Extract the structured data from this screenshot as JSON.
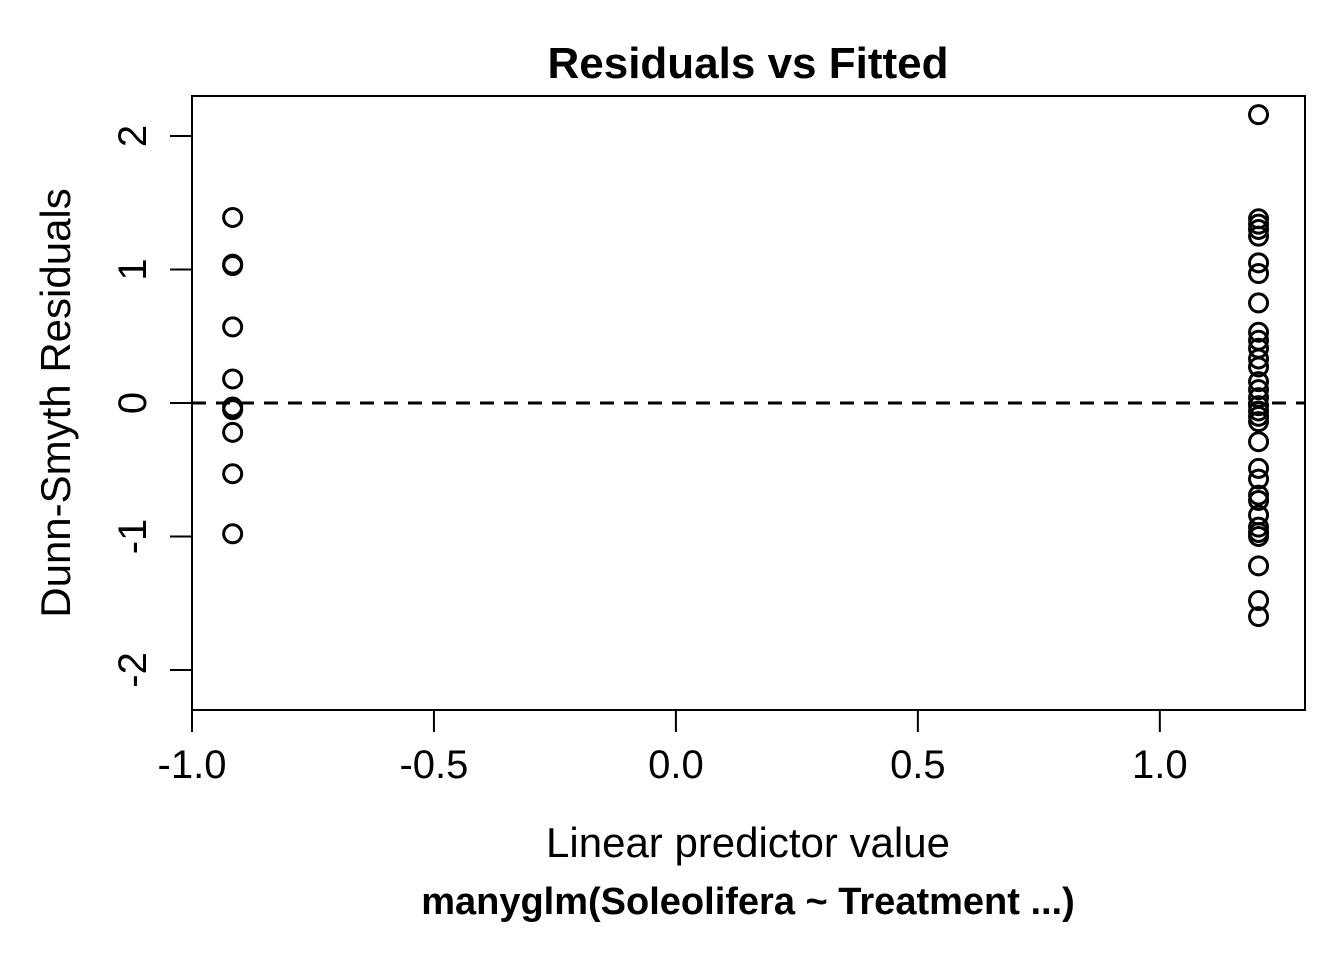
{
  "chart_data": {
    "type": "scatter",
    "title": "Residuals vs Fitted",
    "xlabel": "Linear predictor value",
    "ylabel": "Dunn-Smyth Residuals",
    "subtitle": "manyglm(Soleolifera ~ Treatment ...)",
    "xlim": [
      -1.0,
      1.3
    ],
    "ylim": [
      -2.3,
      2.3
    ],
    "xticks": [
      -1.0,
      -0.5,
      0.0,
      0.5,
      1.0
    ],
    "xtick_labels": [
      "-1.0",
      "-0.5",
      "0.0",
      "0.5",
      "1.0"
    ],
    "yticks": [
      -2,
      -1,
      0,
      1,
      2
    ],
    "ytick_labels": [
      "-2",
      "-1",
      "0",
      "1",
      "2"
    ],
    "reference_line": {
      "y": 0,
      "style": "dashed"
    },
    "grid": false,
    "series": [
      {
        "marker": "open-circle",
        "points": [
          {
            "x": -0.916,
            "y": 1.39
          },
          {
            "x": -0.916,
            "y": 1.04
          },
          {
            "x": -0.916,
            "y": 1.03
          },
          {
            "x": -0.916,
            "y": 0.57
          },
          {
            "x": -0.916,
            "y": 0.18
          },
          {
            "x": -0.916,
            "y": -0.03
          },
          {
            "x": -0.916,
            "y": -0.05
          },
          {
            "x": -0.916,
            "y": -0.22
          },
          {
            "x": -0.916,
            "y": -0.53
          },
          {
            "x": -0.916,
            "y": -0.98
          },
          {
            "x": 1.204,
            "y": 2.16
          },
          {
            "x": 1.204,
            "y": 1.38
          },
          {
            "x": 1.204,
            "y": 1.34
          },
          {
            "x": 1.204,
            "y": 1.3
          },
          {
            "x": 1.204,
            "y": 1.25
          },
          {
            "x": 1.204,
            "y": 1.05
          },
          {
            "x": 1.204,
            "y": 0.97
          },
          {
            "x": 1.204,
            "y": 0.75
          },
          {
            "x": 1.204,
            "y": 0.53
          },
          {
            "x": 1.204,
            "y": 0.47
          },
          {
            "x": 1.204,
            "y": 0.41
          },
          {
            "x": 1.204,
            "y": 0.33
          },
          {
            "x": 1.204,
            "y": 0.27
          },
          {
            "x": 1.204,
            "y": 0.16
          },
          {
            "x": 1.204,
            "y": 0.1
          },
          {
            "x": 1.204,
            "y": 0.04
          },
          {
            "x": 1.204,
            "y": -0.02
          },
          {
            "x": 1.204,
            "y": -0.06
          },
          {
            "x": 1.204,
            "y": -0.1
          },
          {
            "x": 1.204,
            "y": -0.14
          },
          {
            "x": 1.204,
            "y": -0.29
          },
          {
            "x": 1.204,
            "y": -0.49
          },
          {
            "x": 1.204,
            "y": -0.57
          },
          {
            "x": 1.204,
            "y": -0.69
          },
          {
            "x": 1.204,
            "y": -0.73
          },
          {
            "x": 1.204,
            "y": -0.84
          },
          {
            "x": 1.204,
            "y": -0.93
          },
          {
            "x": 1.204,
            "y": -0.97
          },
          {
            "x": 1.204,
            "y": -1.0
          },
          {
            "x": 1.204,
            "y": -1.22
          },
          {
            "x": 1.204,
            "y": -1.48
          },
          {
            "x": 1.204,
            "y": -1.6
          }
        ]
      }
    ]
  }
}
